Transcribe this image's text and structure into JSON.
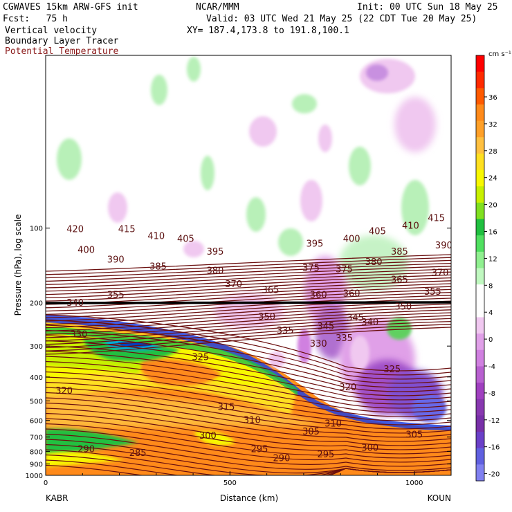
{
  "header": {
    "model": "CGWAVES 15km ARW-GFS init",
    "org": "NCAR/MMM",
    "init": "Init: 00 UTC Sun 18 May 25",
    "fcst": "Fcst:   75 h",
    "valid": "Valid: 03 UTC Wed 21 May 25 (22 CDT Tue 20 May 25)",
    "xy": "XY= 187.4,173.8 to 191.8,100.1",
    "field1": "Vertical velocity",
    "field2": "Boundary Layer Tracer",
    "field3": "Potential Temperature"
  },
  "colors": {
    "theta_contour": "#6b0f0f",
    "tropopause_line": "#000000"
  },
  "chart_data": {
    "type": "heatmap",
    "xlabel": "Distance (km)",
    "ylabel": "Pressure (hPa), log scale",
    "x_ticks": [
      "0",
      "500",
      "1000"
    ],
    "xlim": [
      0,
      1100
    ],
    "y_ticks": [
      "100",
      "200",
      "300",
      "400",
      "500",
      "600",
      "700",
      "800",
      "900",
      "1000"
    ],
    "y_tick_values": [
      100,
      200,
      300,
      400,
      500,
      600,
      700,
      800,
      900,
      1000
    ],
    "ylim": [
      1000,
      20
    ],
    "y_scale": "log",
    "left_station": "KABR",
    "right_station": "KOUN",
    "colorbar": {
      "unit": "cm s⁻¹",
      "labels": [
        "36",
        "32",
        "28",
        "24",
        "20",
        "16",
        "12",
        "8",
        "4",
        "0",
        "-4",
        "-8",
        "-12",
        "-16",
        "-20"
      ],
      "colors": [
        "#ff0000",
        "#ff2a00",
        "#ff5a00",
        "#ff8a1a",
        "#ffa028",
        "#ffc040",
        "#ffe020",
        "#f8f800",
        "#c8f000",
        "#80e020",
        "#20c040",
        "#50e060",
        "#90f090",
        "#c0f8c0",
        "#ffffff",
        "#ffffff",
        "#f0c8f0",
        "#e0a0e8",
        "#d080e0",
        "#b860d0",
        "#a040c0",
        "#8838b0",
        "#7830a8",
        "#6a40c8",
        "#6060e0",
        "#8080f0"
      ]
    },
    "theta_labels": [
      {
        "v": "420",
        "x": 80,
        "p": 103
      },
      {
        "v": "415",
        "x": 220,
        "p": 103
      },
      {
        "v": "410",
        "x": 300,
        "p": 110
      },
      {
        "v": "405",
        "x": 380,
        "p": 113
      },
      {
        "v": "400",
        "x": 110,
        "p": 125
      },
      {
        "v": "395",
        "x": 460,
        "p": 127
      },
      {
        "v": "390",
        "x": 190,
        "p": 137
      },
      {
        "v": "385",
        "x": 305,
        "p": 146
      },
      {
        "v": "380",
        "x": 460,
        "p": 152
      },
      {
        "v": "375",
        "x": 720,
        "p": 148
      },
      {
        "v": "370",
        "x": 510,
        "p": 172
      },
      {
        "v": "365",
        "x": 610,
        "p": 182
      },
      {
        "v": "360",
        "x": 740,
        "p": 190
      },
      {
        "v": "355",
        "x": 190,
        "p": 190
      },
      {
        "v": "350",
        "x": 600,
        "p": 233
      },
      {
        "v": "345",
        "x": 760,
        "p": 255
      },
      {
        "v": "340",
        "x": 80,
        "p": 205
      },
      {
        "v": "335",
        "x": 650,
        "p": 265
      },
      {
        "v": "330",
        "x": 90,
        "p": 275
      },
      {
        "v": "325",
        "x": 420,
        "p": 340
      },
      {
        "v": "320",
        "x": 50,
        "p": 465
      },
      {
        "v": "315",
        "x": 490,
        "p": 540
      },
      {
        "v": "310",
        "x": 560,
        "p": 610
      },
      {
        "v": "305",
        "x": 720,
        "p": 680
      },
      {
        "v": "300",
        "x": 440,
        "p": 705
      },
      {
        "v": "295",
        "x": 580,
        "p": 800
      },
      {
        "v": "290",
        "x": 110,
        "p": 800
      },
      {
        "v": "285",
        "x": 250,
        "p": 830
      },
      {
        "v": "405",
        "x": 900,
        "p": 105
      },
      {
        "v": "410",
        "x": 990,
        "p": 100
      },
      {
        "v": "415",
        "x": 1060,
        "p": 93
      },
      {
        "v": "400",
        "x": 830,
        "p": 113
      },
      {
        "v": "395",
        "x": 730,
        "p": 118
      },
      {
        "v": "390",
        "x": 1080,
        "p": 120
      },
      {
        "v": "385",
        "x": 960,
        "p": 127
      },
      {
        "v": "380",
        "x": 890,
        "p": 140
      },
      {
        "v": "375",
        "x": 810,
        "p": 150
      },
      {
        "v": "370",
        "x": 1070,
        "p": 155
      },
      {
        "v": "365",
        "x": 960,
        "p": 165
      },
      {
        "v": "360",
        "x": 830,
        "p": 188
      },
      {
        "v": "355",
        "x": 1050,
        "p": 185
      },
      {
        "v": "350",
        "x": 970,
        "p": 212
      },
      {
        "v": "345",
        "x": 840,
        "p": 235
      },
      {
        "v": "340",
        "x": 880,
        "p": 245
      },
      {
        "v": "335",
        "x": 810,
        "p": 285
      },
      {
        "v": "330",
        "x": 740,
        "p": 300
      },
      {
        "v": "325",
        "x": 940,
        "p": 380
      },
      {
        "v": "320",
        "x": 820,
        "p": 450
      },
      {
        "v": "310",
        "x": 780,
        "p": 630
      },
      {
        "v": "305",
        "x": 1000,
        "p": 700
      },
      {
        "v": "300",
        "x": 880,
        "p": 790
      },
      {
        "v": "295",
        "x": 760,
        "p": 840
      },
      {
        "v": "290",
        "x": 640,
        "p": 870
      }
    ]
  }
}
